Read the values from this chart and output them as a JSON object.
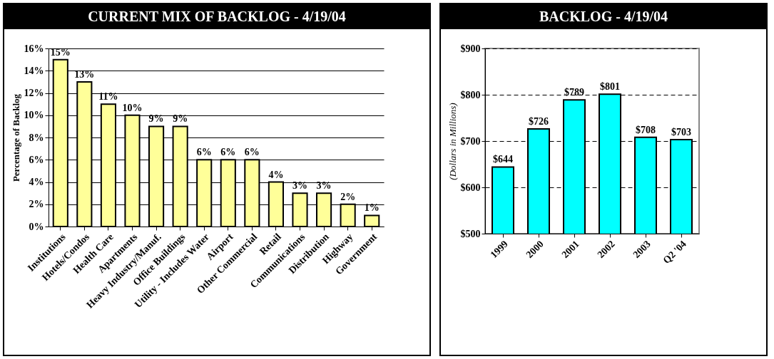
{
  "chart_data": [
    {
      "type": "bar",
      "title": "CURRENT MIX OF BACKLOG - 4/19/04",
      "ylabel": "Percentage of Backlog",
      "categories": [
        "Institutions",
        "Hotels/Condos",
        "Health Care",
        "Apartments",
        "Heavy Industry/Manuf.",
        "Office Buildings",
        "Utility - Includes Water",
        "Airport",
        "Other Commercial",
        "Retail",
        "Communications",
        "Distribution",
        "Highway",
        "Government"
      ],
      "series": [
        {
          "color": "#ffff99",
          "values": [
            15,
            13,
            11,
            10,
            9,
            9,
            6,
            6,
            6,
            4,
            3,
            3,
            2,
            1
          ]
        }
      ],
      "value_labels": [
        "15%",
        "13%",
        "11%",
        "10%",
        "9%",
        "9%",
        "6%",
        "6%",
        "6%",
        "4%",
        "3%",
        "3%",
        "2%",
        "1%"
      ],
      "ylim": [
        0,
        16
      ],
      "yticks": [
        {
          "value": 0,
          "label": "0%"
        },
        {
          "value": 2,
          "label": "2%"
        },
        {
          "value": 4,
          "label": "4%"
        },
        {
          "value": 6,
          "label": "6%"
        },
        {
          "value": 8,
          "label": "8%"
        },
        {
          "value": 10,
          "label": "10%"
        },
        {
          "value": 12,
          "label": "12%"
        },
        {
          "value": 14,
          "label": "14%"
        },
        {
          "value": 16,
          "label": "16%"
        }
      ],
      "grid": "y"
    },
    {
      "type": "bar",
      "title": "BACKLOG - 4/19/04",
      "ylabel": "(Dollars in Millions)",
      "categories": [
        "1999",
        "2000",
        "2001",
        "2002",
        "2003",
        "Q2 '04"
      ],
      "series": [
        {
          "color": "#00ffff",
          "values": [
            644,
            726,
            789,
            801,
            708,
            703
          ]
        }
      ],
      "value_labels": [
        "$644",
        "$726",
        "$789",
        "$801",
        "$708",
        "$703"
      ],
      "ylim": [
        500,
        900
      ],
      "yticks": [
        {
          "value": 500,
          "label": "$500"
        },
        {
          "value": 600,
          "label": "$600"
        },
        {
          "value": 700,
          "label": "$700"
        },
        {
          "value": 800,
          "label": "$800"
        },
        {
          "value": 900,
          "label": "$900"
        }
      ],
      "grid": "y"
    }
  ]
}
